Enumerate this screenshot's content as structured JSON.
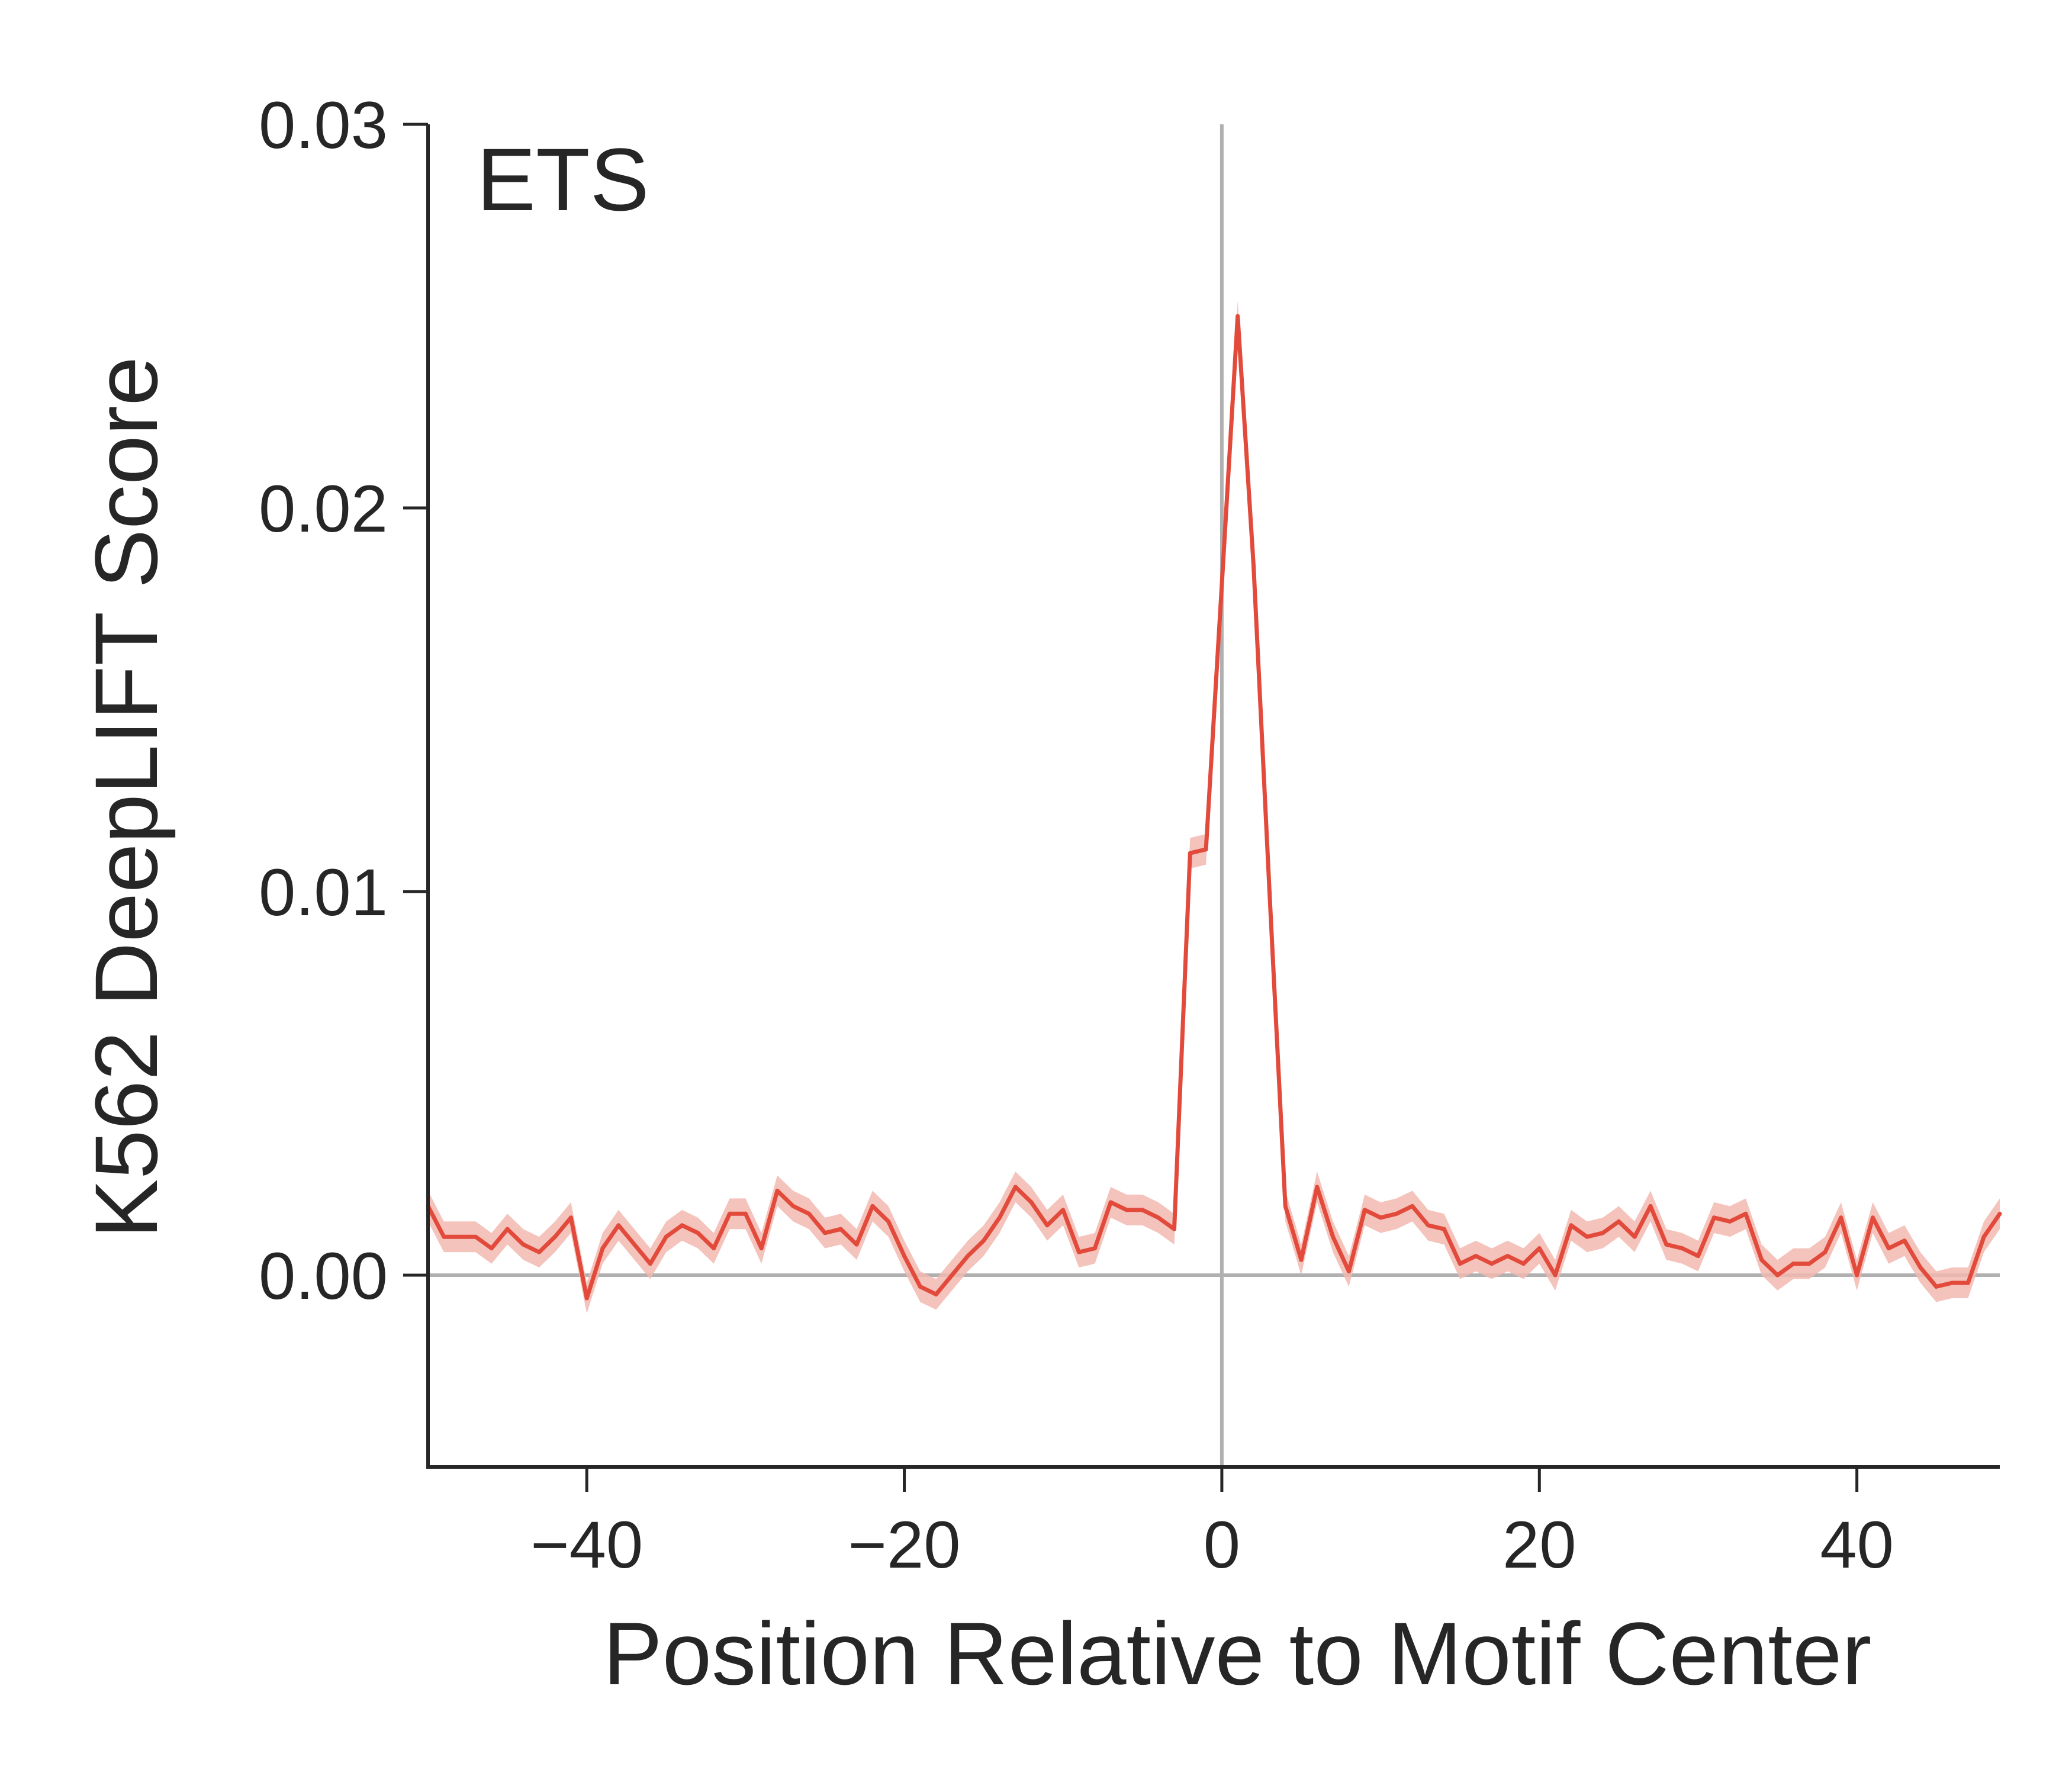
{
  "chart_data": {
    "type": "line",
    "title": "",
    "annotation": "ETS",
    "xlabel": "Position Relative to Motif Center",
    "ylabel": "K562 DeepLIFT Score",
    "xlim": [
      -50,
      49
    ],
    "ylim": [
      -0.005,
      0.03
    ],
    "x_ticks": [
      -40,
      -20,
      0,
      20,
      40
    ],
    "x_tick_labels": [
      "−40",
      "−20",
      "0",
      "20",
      "40"
    ],
    "y_ticks": [
      0.0,
      0.01,
      0.02,
      0.03
    ],
    "y_tick_labels": [
      "0.00",
      "0.01",
      "0.02",
      "0.03"
    ],
    "reference_lines": {
      "x": 0,
      "y": 0
    },
    "grid": false,
    "colors": {
      "line": "#e24a3b",
      "band": "#f2b8b0",
      "reference": "#b0b0b0",
      "axis": "#262626"
    },
    "series": [
      {
        "x": [
          -50,
          -49,
          -48,
          -47,
          -46,
          -45,
          -44,
          -43,
          -42,
          -41,
          -40,
          -39,
          -38,
          -37,
          -36,
          -35,
          -34,
          -33,
          -32,
          -31,
          -30,
          -29,
          -28,
          -27,
          -26,
          -25,
          -24,
          -23,
          -22,
          -21,
          -20,
          -19,
          -18,
          -17,
          -16,
          -15,
          -14,
          -13,
          -12,
          -11,
          -10,
          -9,
          -8,
          -7,
          -6,
          -5,
          -4,
          -3,
          -2,
          -1,
          0,
          1,
          2,
          3,
          4,
          5,
          6,
          7,
          8,
          9,
          10,
          11,
          12,
          13,
          14,
          15,
          16,
          17,
          18,
          19,
          20,
          21,
          22,
          23,
          24,
          25,
          26,
          27,
          28,
          29,
          30,
          31,
          32,
          33,
          34,
          35,
          36,
          37,
          38,
          39,
          40,
          41,
          42,
          43,
          44,
          45,
          46,
          47,
          48,
          49
        ],
        "y": [
          0.0018,
          0.001,
          0.001,
          0.001,
          0.0007,
          0.0012,
          0.0008,
          0.0006,
          0.001,
          0.0015,
          -0.0006,
          0.0007,
          0.0013,
          0.0008,
          0.0003,
          0.001,
          0.0013,
          0.0011,
          0.0007,
          0.0016,
          0.0016,
          0.0007,
          0.0022,
          0.0018,
          0.0016,
          0.0011,
          0.0012,
          0.0008,
          0.0018,
          0.0014,
          0.0005,
          -0.0003,
          -0.0005,
          0.0,
          0.0005,
          0.0009,
          0.0015,
          0.0023,
          0.0019,
          0.0013,
          0.0017,
          0.0006,
          0.0007,
          0.0019,
          0.0017,
          0.0017,
          0.0015,
          0.0012,
          0.011,
          0.0111,
          0.018,
          0.025,
          0.0185,
          0.01,
          0.0018,
          0.0004,
          0.0023,
          0.001,
          0.0001,
          0.0017,
          0.0015,
          0.0016,
          0.0018,
          0.0013,
          0.0012,
          0.0003,
          0.0005,
          0.0003,
          0.0005,
          0.0003,
          0.0007,
          0.0,
          0.0013,
          0.001,
          0.0011,
          0.0014,
          0.001,
          0.0018,
          0.0008,
          0.0007,
          0.0005,
          0.0015,
          0.0014,
          0.0016,
          0.0004,
          0.0,
          0.0003,
          0.0003,
          0.0006,
          0.0015,
          0.0,
          0.0015,
          0.0007,
          0.0009,
          0.0002,
          -0.0003,
          -0.0002,
          -0.0002,
          0.001,
          0.0016
        ],
        "ci_halfwidth": 0.0004
      }
    ]
  }
}
